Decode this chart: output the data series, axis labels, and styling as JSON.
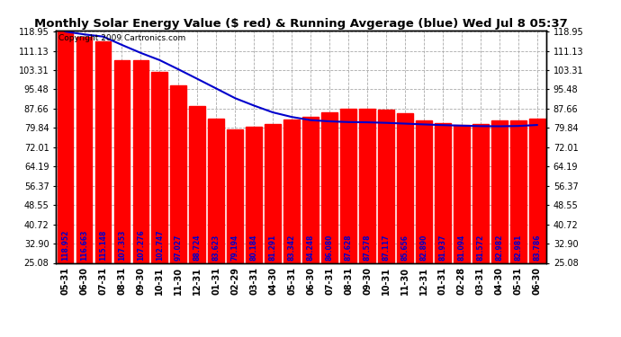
{
  "title": "Monthly Solar Energy Value ($ red) & Running Avgerage (blue) Wed Jul 8 05:37",
  "copyright": "Copyright 2009 Cartronics.com",
  "categories": [
    "05-31",
    "06-30",
    "07-31",
    "08-31",
    "09-30",
    "10-31",
    "11-30",
    "12-31",
    "01-31",
    "02-29",
    "03-31",
    "04-30",
    "05-31",
    "06-30",
    "07-31",
    "08-31",
    "09-30",
    "10-31",
    "11-30",
    "12-31",
    "01-31",
    "02-28",
    "03-31",
    "04-30",
    "05-31",
    "06-30"
  ],
  "bar_values": [
    118.952,
    116.663,
    115.148,
    107.353,
    107.276,
    102.747,
    97.027,
    88.724,
    83.623,
    79.194,
    80.184,
    81.291,
    83.342,
    84.248,
    86.08,
    87.628,
    87.578,
    87.117,
    85.656,
    82.89,
    81.937,
    81.094,
    81.572,
    82.982,
    82.981,
    83.786
  ],
  "running_avg": [
    118.952,
    117.808,
    116.921,
    113.529,
    110.278,
    107.357,
    103.595,
    99.736,
    95.834,
    91.908,
    88.907,
    86.146,
    84.294,
    83.008,
    82.512,
    82.228,
    82.122,
    81.91,
    81.595,
    81.272,
    80.987,
    80.77,
    80.57,
    80.517,
    80.625,
    81.042
  ],
  "bar_color": "#FF0000",
  "line_color": "#0000CC",
  "bg_color": "#FFFFFF",
  "plot_bg_color": "#FFFFFF",
  "grid_color": "#AAAAAA",
  "label_color": "#0000CC",
  "ytick_labels": [
    "25.08",
    "32.90",
    "40.72",
    "48.55",
    "56.37",
    "64.19",
    "72.01",
    "79.84",
    "87.66",
    "95.48",
    "103.31",
    "111.13",
    "118.95"
  ],
  "ytick_values": [
    25.08,
    32.9,
    40.72,
    48.55,
    56.37,
    64.19,
    72.01,
    79.84,
    87.66,
    95.48,
    103.31,
    111.13,
    118.95
  ],
  "ymin": 25.08,
  "ymax": 118.95,
  "title_fontsize": 9.5,
  "bar_label_fontsize": 5.5,
  "axis_label_fontsize": 7,
  "copyright_fontsize": 6.5
}
